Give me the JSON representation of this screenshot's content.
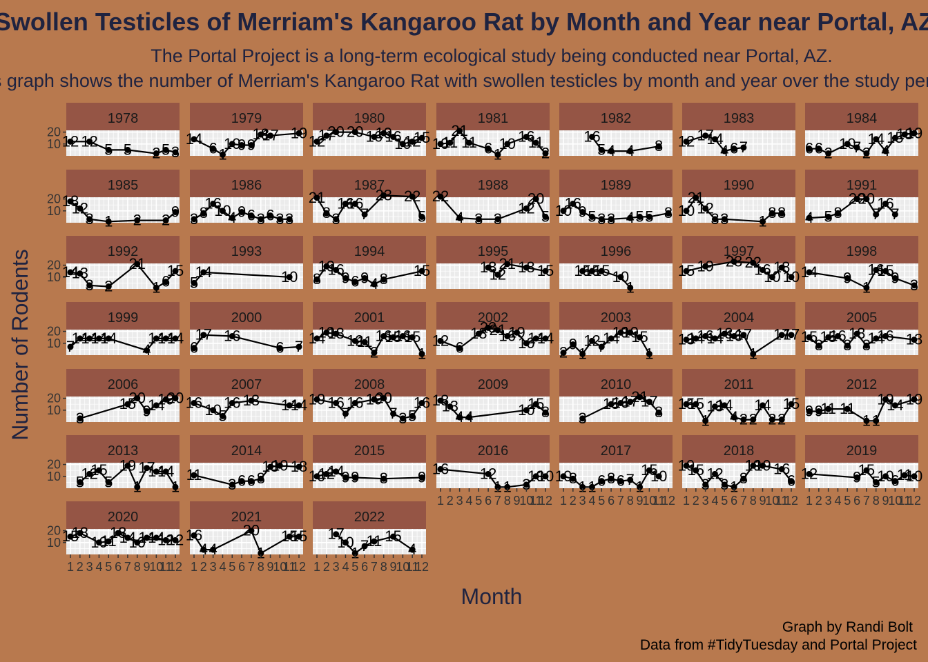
{
  "chart_data": {
    "type": "line",
    "title": "Swollen Testicles of Merriam's Kangaroo Rat by Month and Year near Portal, AZ",
    "subtitle_lines": [
      "The Portal Project is a long-term ecological study being conducted near Portal, AZ.",
      "This graph shows the number of Merriam's Kangaroo Rat with swollen testicles by month and year over the study period."
    ],
    "xlabel": "Month",
    "ylabel": "Number of Rodents",
    "y_ticks": [
      10,
      20
    ],
    "x_ticks": [
      "1",
      "2",
      "3",
      "4",
      "5",
      "6",
      "7",
      "8",
      "9",
      "10",
      "11",
      "12"
    ],
    "facet": "year",
    "caption_lines": [
      "Graph by Randi Bolt",
      "Data from #TidyTuesday and Portal Project"
    ],
    "colors": {
      "background": "#b8794e",
      "strip": "#955545",
      "panel": "#ebebeb",
      "ink": "#1f2340",
      "line": "#000000"
    },
    "panels": [
      {
        "year": "1978",
        "x": [
          1,
          3,
          5,
          7,
          10,
          11,
          12
        ],
        "y": [
          12,
          12,
          5,
          5,
          2,
          5,
          3
        ]
      },
      {
        "year": "1979",
        "x": [
          1,
          3,
          4,
          5,
          6,
          7,
          8,
          9,
          12
        ],
        "y": [
          14,
          6,
          1,
          10,
          9,
          9,
          18,
          17,
          19
        ]
      },
      {
        "year": "1980",
        "x": [
          1,
          2,
          3,
          5,
          7,
          8,
          9,
          10,
          11,
          12
        ],
        "y": [
          12,
          17,
          20,
          20,
          16,
          19,
          16,
          10,
          12,
          15
        ]
      },
      {
        "year": "1981",
        "x": [
          1,
          2,
          3,
          4,
          6,
          7,
          8,
          10,
          11,
          12
        ],
        "y": [
          10,
          11,
          21,
          11,
          6,
          1,
          10,
          16,
          11,
          2
        ]
      },
      {
        "year": "1982",
        "x": [
          4,
          5,
          6,
          8,
          11
        ],
        "y": [
          16,
          5,
          4,
          4,
          8
        ]
      },
      {
        "year": "1983",
        "x": [
          1,
          3,
          4,
          5,
          6,
          7
        ],
        "y": [
          12,
          17,
          14,
          4,
          6,
          7
        ]
      },
      {
        "year": "1984",
        "x": [
          1,
          2,
          3,
          5,
          6,
          7,
          8,
          9,
          10,
          11,
          12
        ],
        "y": [
          6,
          6,
          2,
          10,
          7,
          2,
          14,
          4,
          15,
          18,
          19
        ]
      },
      {
        "year": "1985",
        "x": [
          1,
          2,
          3,
          5,
          8,
          11,
          12
        ],
        "y": [
          18,
          12,
          3,
          1,
          2,
          2,
          9
        ]
      },
      {
        "year": "1986",
        "x": [
          1,
          2,
          3,
          4,
          5,
          6,
          7,
          8,
          9,
          10,
          11
        ],
        "y": [
          3,
          8,
          16,
          10,
          4,
          9,
          6,
          3,
          6,
          3,
          3
        ]
      },
      {
        "year": "1987",
        "x": [
          1,
          2,
          3,
          4,
          5,
          6,
          8,
          11,
          12
        ],
        "y": [
          21,
          8,
          3,
          16,
          16,
          7,
          23,
          22,
          5
        ]
      },
      {
        "year": "1988",
        "x": [
          1,
          3,
          5,
          7,
          10,
          11,
          12
        ],
        "y": [
          22,
          4,
          3,
          3,
          12,
          20,
          5
        ]
      },
      {
        "year": "1989",
        "x": [
          1,
          2,
          3,
          4,
          5,
          6,
          8,
          9,
          10,
          12
        ],
        "y": [
          10,
          16,
          9,
          5,
          3,
          3,
          4,
          5,
          5,
          8
        ]
      },
      {
        "year": "1990",
        "x": [
          1,
          2,
          3,
          4,
          5,
          9,
          10,
          11
        ],
        "y": [
          10,
          21,
          12,
          3,
          3,
          1,
          8,
          8
        ]
      },
      {
        "year": "1991",
        "x": [
          1,
          3,
          4,
          6,
          7,
          8,
          9,
          10
        ],
        "y": [
          4,
          5,
          8,
          20,
          20,
          7,
          16,
          7
        ]
      },
      {
        "year": "1992",
        "x": [
          1,
          2,
          3,
          5,
          8,
          10,
          11,
          12
        ],
        "y": [
          14,
          13,
          3,
          2,
          21,
          1,
          6,
          15
        ]
      },
      {
        "year": "1993",
        "x": [
          1,
          2,
          11
        ],
        "y": [
          5,
          14,
          10
        ]
      },
      {
        "year": "1994",
        "x": [
          1,
          2,
          3,
          4,
          5,
          6,
          7,
          8,
          12
        ],
        "y": [
          8,
          19,
          16,
          9,
          6,
          9,
          4,
          8,
          15
        ]
      },
      {
        "year": "1995",
        "x": [
          6,
          7,
          8,
          10,
          12
        ],
        "y": [
          18,
          12,
          21,
          18,
          15
        ]
      },
      {
        "year": "1996",
        "x": [
          3,
          4,
          5,
          7,
          8
        ],
        "y": [
          15,
          15,
          15,
          10,
          1
        ]
      },
      {
        "year": "1997",
        "x": [
          1,
          3,
          6,
          8,
          9,
          10,
          11,
          12
        ],
        "y": [
          15,
          19,
          23,
          22,
          16,
          10,
          18,
          10
        ]
      },
      {
        "year": "1998",
        "x": [
          1,
          5,
          7,
          8,
          9,
          10,
          12
        ],
        "y": [
          14,
          9,
          1,
          16,
          15,
          9,
          3
        ]
      },
      {
        "year": "1999",
        "x": [
          1,
          2,
          3,
          4,
          5,
          9,
          10,
          11,
          12
        ],
        "y": [
          7,
          14,
          14,
          14,
          14,
          4,
          14,
          14,
          14
        ]
      },
      {
        "year": "2000",
        "x": [
          1,
          2,
          5,
          10,
          12
        ],
        "y": [
          6,
          17,
          16,
          6,
          7
        ]
      },
      {
        "year": "2001",
        "x": [
          1,
          2,
          3,
          5,
          6,
          7,
          8,
          9,
          10,
          11,
          12
        ],
        "y": [
          14,
          19,
          18,
          12,
          11,
          2,
          16,
          15,
          16,
          15,
          1
        ]
      },
      {
        "year": "2002",
        "x": [
          1,
          3,
          5,
          6,
          7,
          8,
          9,
          10,
          11,
          12
        ],
        "y": [
          12,
          6,
          18,
          23,
          21,
          16,
          19,
          10,
          14,
          14
        ]
      },
      {
        "year": "2003",
        "x": [
          1,
          2,
          3,
          4,
          5,
          6,
          7,
          8,
          9,
          10
        ],
        "y": [
          2,
          9,
          1,
          12,
          7,
          14,
          19,
          19,
          15,
          1
        ]
      },
      {
        "year": "2004",
        "x": [
          1,
          2,
          3,
          4,
          5,
          6,
          7,
          8,
          11,
          12
        ],
        "y": [
          13,
          14,
          16,
          14,
          18,
          16,
          17,
          1,
          17,
          17
        ]
      },
      {
        "year": "2005",
        "x": [
          1,
          2,
          3,
          4,
          5,
          6,
          7,
          8,
          9,
          12
        ],
        "y": [
          15,
          8,
          15,
          16,
          8,
          18,
          8,
          14,
          16,
          13
        ]
      },
      {
        "year": "2006",
        "x": [
          2,
          7,
          8,
          9,
          10,
          11,
          12
        ],
        "y": [
          3,
          15,
          20,
          9,
          14,
          19,
          20
        ]
      },
      {
        "year": "2007",
        "x": [
          1,
          3,
          4,
          5,
          7,
          11,
          12
        ],
        "y": [
          16,
          10,
          5,
          16,
          18,
          14,
          14
        ]
      },
      {
        "year": "2008",
        "x": [
          1,
          3,
          4,
          5,
          7,
          8,
          9,
          10,
          11,
          12
        ],
        "y": [
          19,
          16,
          7,
          16,
          19,
          20,
          7,
          3,
          5,
          16
        ]
      },
      {
        "year": "2009",
        "x": [
          1,
          2,
          3,
          4,
          10,
          11,
          12
        ],
        "y": [
          18,
          13,
          4,
          4,
          10,
          15,
          8
        ]
      },
      {
        "year": "2010",
        "x": [
          3,
          6,
          7,
          8,
          9,
          10,
          11
        ],
        "y": [
          3,
          15,
          16,
          17,
          21,
          17,
          8
        ]
      },
      {
        "year": "2011",
        "x": [
          1,
          2,
          3,
          4,
          5,
          6,
          7,
          8,
          9,
          10,
          11,
          12
        ],
        "y": [
          15,
          15,
          1,
          13,
          14,
          4,
          2,
          2,
          14,
          2,
          2,
          15
        ]
      },
      {
        "year": "2012",
        "x": [
          1,
          2,
          3,
          5,
          7,
          8,
          9,
          10,
          12
        ],
        "y": [
          9,
          9,
          11,
          11,
          1,
          1,
          19,
          14,
          19
        ]
      },
      {
        "year": "2013",
        "x": [
          2,
          3,
          4,
          5,
          7,
          8,
          9,
          10,
          11,
          12
        ],
        "y": [
          5,
          12,
          15,
          5,
          19,
          1,
          17,
          14,
          14,
          1
        ]
      },
      {
        "year": "2014",
        "x": [
          1,
          5,
          6,
          7,
          8,
          9,
          10,
          12
        ],
        "y": [
          11,
          3,
          6,
          6,
          8,
          18,
          19,
          18
        ]
      },
      {
        "year": "2015",
        "x": [
          1,
          2,
          3,
          4,
          5,
          8,
          12
        ],
        "y": [
          10,
          12,
          14,
          9,
          9,
          8,
          9
        ]
      },
      {
        "year": "2016",
        "x": [
          1,
          6,
          7,
          8,
          10,
          11,
          12
        ],
        "y": [
          16,
          12,
          1,
          1,
          3,
          10,
          10
        ]
      },
      {
        "year": "2017",
        "x": [
          1,
          2,
          3,
          4,
          5,
          6,
          7,
          8,
          9,
          10,
          11
        ],
        "y": [
          10,
          8,
          1,
          1,
          6,
          8,
          6,
          7,
          1,
          15,
          10
        ]
      },
      {
        "year": "2018",
        "x": [
          1,
          2,
          3,
          4,
          5,
          6,
          7,
          8,
          9,
          11,
          12
        ],
        "y": [
          19,
          15,
          3,
          12,
          3,
          1,
          8,
          19,
          19,
          16,
          6
        ]
      },
      {
        "year": "2019",
        "x": [
          1,
          6,
          7,
          8,
          9,
          10,
          11,
          12
        ],
        "y": [
          12,
          9,
          15,
          5,
          10,
          6,
          11,
          10
        ]
      },
      {
        "year": "2020",
        "x": [
          1,
          2,
          4,
          5,
          6,
          7,
          8,
          9,
          10,
          11,
          12
        ],
        "y": [
          15,
          18,
          10,
          11,
          18,
          14,
          10,
          14,
          14,
          12,
          12
        ]
      },
      {
        "year": "2021",
        "x": [
          1,
          2,
          3,
          7,
          8,
          11,
          12
        ],
        "y": [
          16,
          4,
          4,
          20,
          1,
          15,
          15
        ]
      },
      {
        "year": "2022",
        "x": [
          3,
          4,
          5,
          6,
          7,
          9,
          11
        ],
        "y": [
          17,
          10,
          1,
          7,
          11,
          15,
          4
        ]
      }
    ]
  }
}
